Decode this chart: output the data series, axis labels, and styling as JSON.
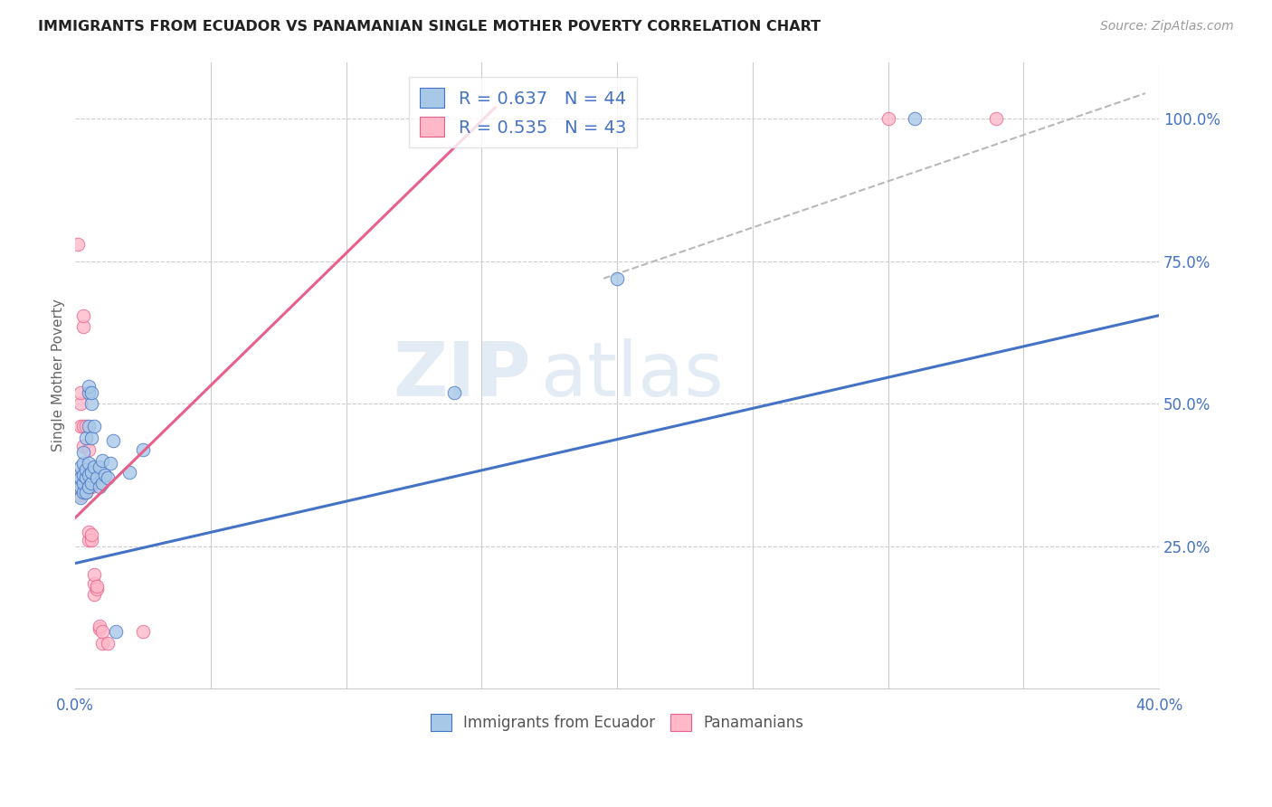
{
  "title": "IMMIGRANTS FROM ECUADOR VS PANAMANIAN SINGLE MOTHER POVERTY CORRELATION CHART",
  "source": "Source: ZipAtlas.com",
  "ylabel": "Single Mother Poverty",
  "legend": {
    "blue_label": "R = 0.637   N = 44",
    "pink_label": "R = 0.535   N = 43",
    "bottom_blue": "Immigrants from Ecuador",
    "bottom_pink": "Panamanians"
  },
  "blue_scatter": [
    [
      0.001,
      0.355
    ],
    [
      0.001,
      0.365
    ],
    [
      0.001,
      0.375
    ],
    [
      0.002,
      0.335
    ],
    [
      0.002,
      0.355
    ],
    [
      0.002,
      0.37
    ],
    [
      0.002,
      0.39
    ],
    [
      0.003,
      0.345
    ],
    [
      0.003,
      0.36
    ],
    [
      0.003,
      0.375
    ],
    [
      0.003,
      0.395
    ],
    [
      0.003,
      0.415
    ],
    [
      0.004,
      0.345
    ],
    [
      0.004,
      0.37
    ],
    [
      0.004,
      0.385
    ],
    [
      0.004,
      0.44
    ],
    [
      0.005,
      0.355
    ],
    [
      0.005,
      0.375
    ],
    [
      0.005,
      0.395
    ],
    [
      0.005,
      0.46
    ],
    [
      0.005,
      0.52
    ],
    [
      0.005,
      0.53
    ],
    [
      0.006,
      0.36
    ],
    [
      0.006,
      0.38
    ],
    [
      0.006,
      0.44
    ],
    [
      0.006,
      0.5
    ],
    [
      0.006,
      0.52
    ],
    [
      0.007,
      0.39
    ],
    [
      0.007,
      0.46
    ],
    [
      0.008,
      0.37
    ],
    [
      0.009,
      0.355
    ],
    [
      0.009,
      0.39
    ],
    [
      0.01,
      0.36
    ],
    [
      0.01,
      0.4
    ],
    [
      0.011,
      0.375
    ],
    [
      0.012,
      0.37
    ],
    [
      0.013,
      0.395
    ],
    [
      0.014,
      0.435
    ],
    [
      0.015,
      0.1
    ],
    [
      0.02,
      0.38
    ],
    [
      0.025,
      0.42
    ],
    [
      0.14,
      0.52
    ],
    [
      0.2,
      0.72
    ],
    [
      0.31,
      1.0
    ]
  ],
  "pink_scatter": [
    [
      0.001,
      0.78
    ],
    [
      0.001,
      0.355
    ],
    [
      0.001,
      0.365
    ],
    [
      0.002,
      0.34
    ],
    [
      0.002,
      0.355
    ],
    [
      0.002,
      0.37
    ],
    [
      0.002,
      0.46
    ],
    [
      0.002,
      0.5
    ],
    [
      0.002,
      0.52
    ],
    [
      0.003,
      0.345
    ],
    [
      0.003,
      0.355
    ],
    [
      0.003,
      0.38
    ],
    [
      0.003,
      0.425
    ],
    [
      0.003,
      0.46
    ],
    [
      0.003,
      0.635
    ],
    [
      0.003,
      0.655
    ],
    [
      0.004,
      0.345
    ],
    [
      0.004,
      0.355
    ],
    [
      0.004,
      0.37
    ],
    [
      0.004,
      0.385
    ],
    [
      0.004,
      0.46
    ],
    [
      0.005,
      0.26
    ],
    [
      0.005,
      0.275
    ],
    [
      0.005,
      0.355
    ],
    [
      0.005,
      0.38
    ],
    [
      0.005,
      0.42
    ],
    [
      0.006,
      0.26
    ],
    [
      0.006,
      0.27
    ],
    [
      0.006,
      0.355
    ],
    [
      0.006,
      0.38
    ],
    [
      0.007,
      0.165
    ],
    [
      0.007,
      0.185
    ],
    [
      0.007,
      0.2
    ],
    [
      0.008,
      0.175
    ],
    [
      0.008,
      0.18
    ],
    [
      0.009,
      0.105
    ],
    [
      0.009,
      0.11
    ],
    [
      0.01,
      0.08
    ],
    [
      0.01,
      0.1
    ],
    [
      0.012,
      0.08
    ],
    [
      0.025,
      0.1
    ],
    [
      0.3,
      1.0
    ],
    [
      0.34,
      1.0
    ]
  ],
  "blue_line": {
    "x": [
      0.0,
      0.4
    ],
    "y": [
      0.22,
      0.655
    ]
  },
  "pink_line": {
    "x": [
      0.0,
      0.155
    ],
    "y": [
      0.3,
      1.02
    ]
  },
  "diag_line": {
    "x": [
      0.195,
      0.395
    ],
    "y": [
      0.72,
      1.045
    ]
  },
  "xlim": [
    0.0,
    0.4
  ],
  "ylim": [
    0.0,
    1.1
  ],
  "blue_color": "#a8c8e8",
  "blue_line_color": "#4472C4",
  "pink_color": "#ffb8c8",
  "pink_line_color": "#e8608a",
  "diag_color": "#b8b8b8",
  "watermark_zip": "ZIP",
  "watermark_atlas": "atlas",
  "background": "#ffffff"
}
